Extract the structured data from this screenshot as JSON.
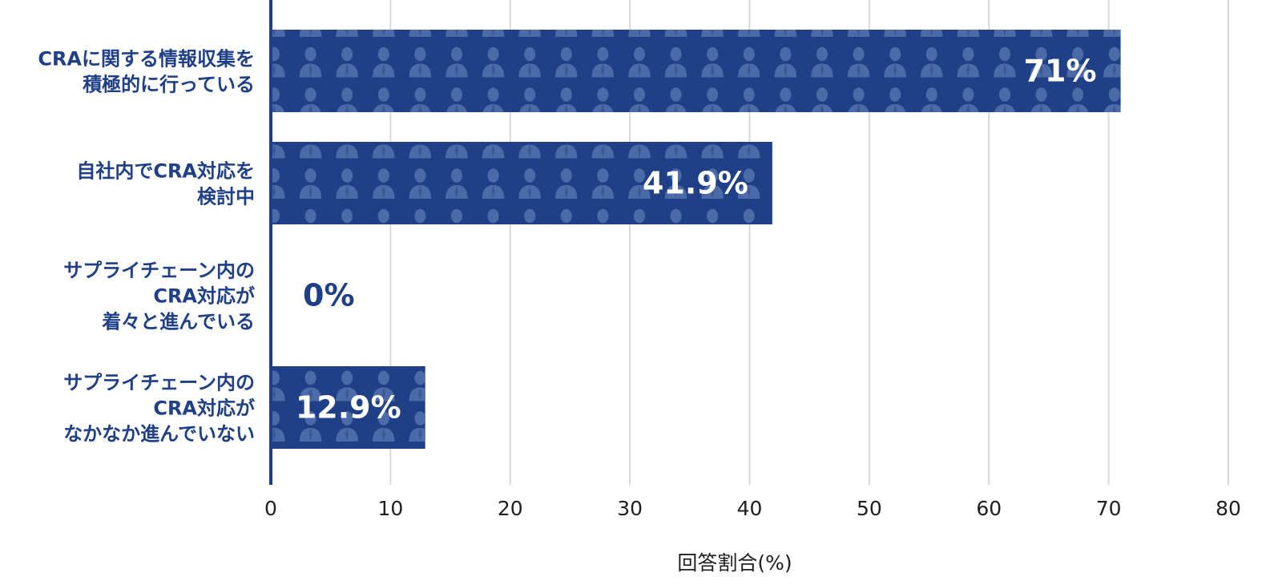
{
  "chart_data": {
    "type": "bar",
    "orientation": "horizontal",
    "categories": [
      [
        "CRAに関する情報収集を",
        "積極的に行っている"
      ],
      [
        "自社内でCRA対応を",
        "検討中"
      ],
      [
        "サプライチェーン内の",
        "CRA対応が",
        "着々と進んでいる"
      ],
      [
        "サプライチェーン内の",
        "CRA対応が",
        "なかなか進んでいない"
      ]
    ],
    "values": [
      71,
      41.9,
      0,
      12.9
    ],
    "data_labels": [
      "71%",
      "41.9%",
      "0%",
      "12.9%"
    ],
    "xlabel": "回答割合(%)",
    "xlim": [
      0,
      80
    ],
    "x_ticks": [
      "0",
      "10",
      "20",
      "30",
      "40",
      "50",
      "60",
      "70",
      "80"
    ],
    "grid": "vertical",
    "bar_fill": "pictogram-person-pattern",
    "colors": {
      "bar": "#1f3f87",
      "pattern_icon": "#4d6aa8",
      "category_text": "#1f3f87",
      "axis_line": "#1f3f87",
      "grid": "#d9d9d9",
      "tick_text": "#1f1f1f",
      "label_on_bar": "#ffffff"
    }
  }
}
